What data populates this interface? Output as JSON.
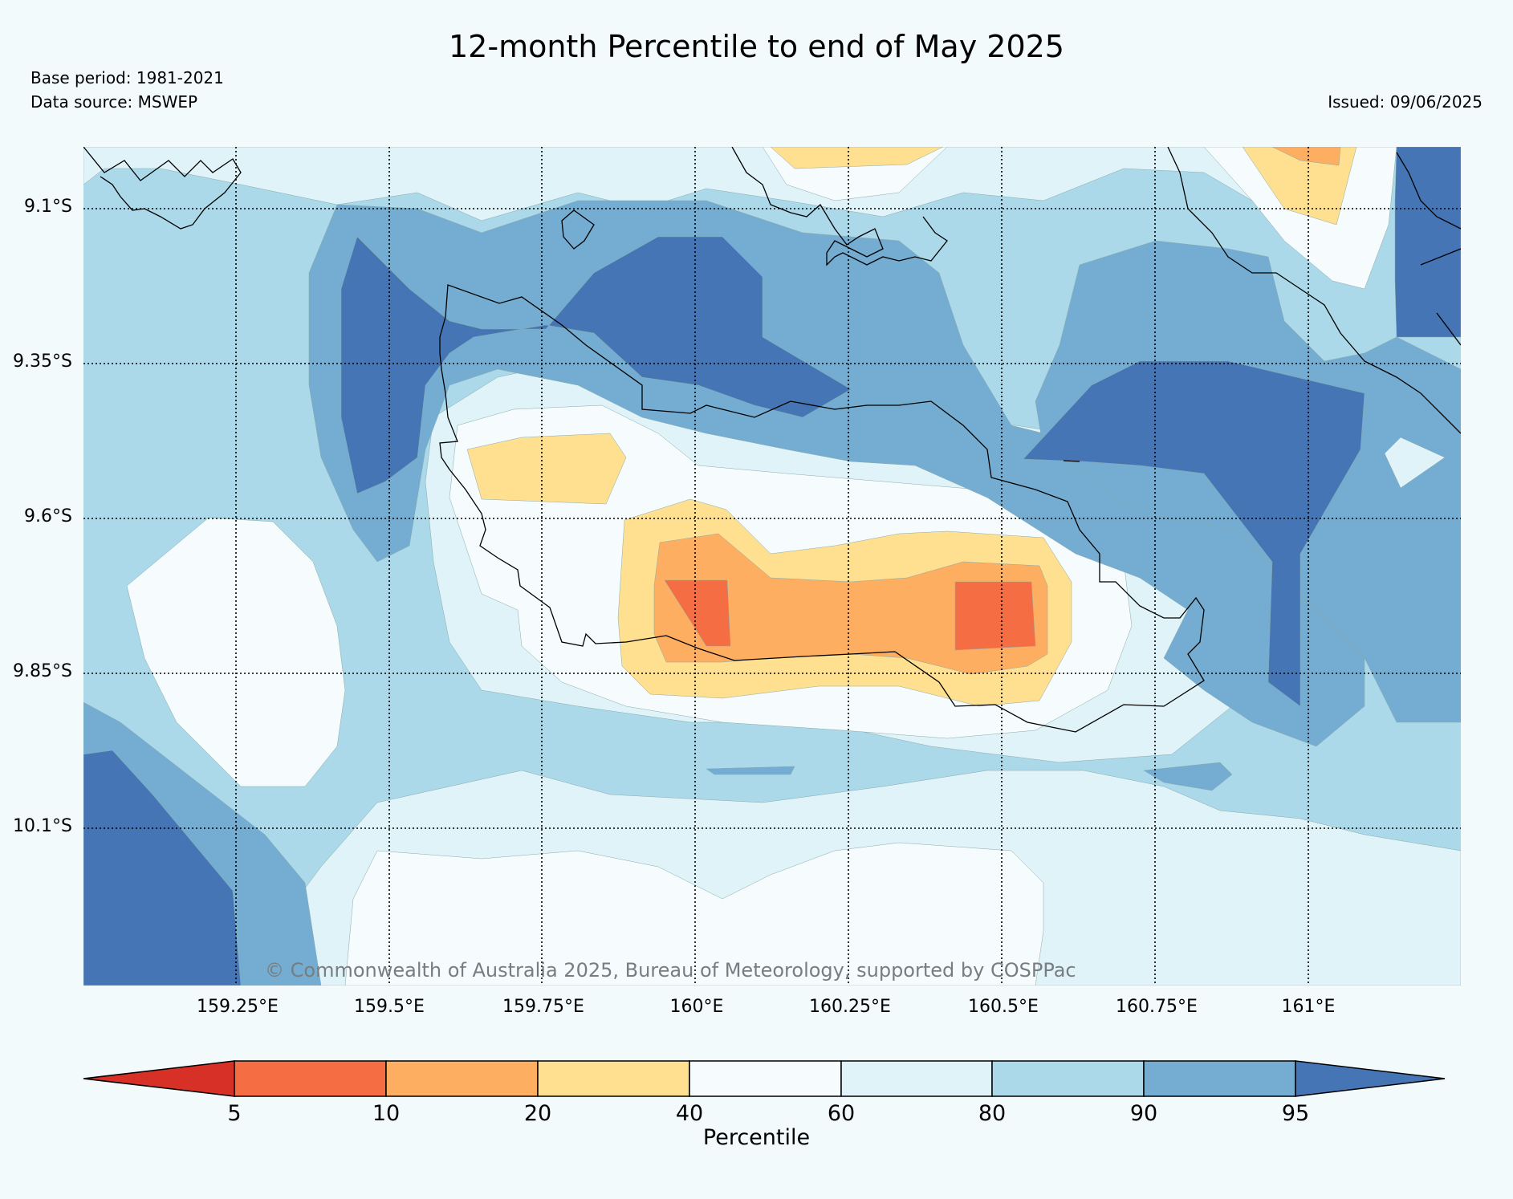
{
  "title": "12-month Percentile to end of May 2025",
  "base_period": "Base period: 1981-2021",
  "data_source": "Data source: MSWEP",
  "issued": "Issued: 09/06/2025",
  "copyright": "© Commonwealth of Australia 2025, Bureau of Meteorology, supported by COSPPac",
  "map": {
    "lat_labels": [
      "9.1°S",
      "9.35°S",
      "9.6°S",
      "9.85°S",
      "10.1°S"
    ],
    "lon_labels": [
      "159.25°E",
      "159.5°E",
      "159.75°E",
      "160°E",
      "160.25°E",
      "160.5°E",
      "160.75°E",
      "161°E"
    ]
  },
  "colorbar": {
    "label": "Percentile",
    "ticks": [
      "5",
      "10",
      "20",
      "40",
      "60",
      "80",
      "90",
      "95"
    ],
    "colors": [
      "#d73027",
      "#f46d43",
      "#fdae61",
      "#fee090",
      "#f6fbfd",
      "#e0f3f8",
      "#abd9e9",
      "#74add1",
      "#4575b4"
    ]
  }
}
